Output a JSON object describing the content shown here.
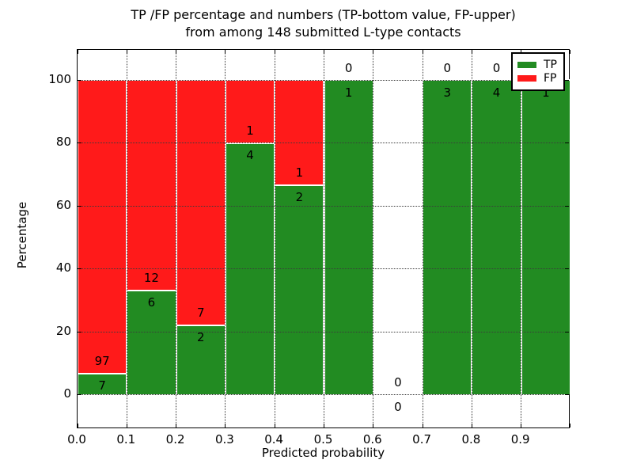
{
  "title": {
    "line1": "TP /FP percentage and numbers (TP-bottom value, FP-upper)",
    "line2": "from among 148 submitted L-type contacts"
  },
  "axes": {
    "xlabel": "Predicted probability",
    "ylabel": "Percentage",
    "xticks": [
      "0.0",
      "0.1",
      "0.2",
      "0.3",
      "0.4",
      "0.5",
      "0.6",
      "0.7",
      "0.8",
      "0.9"
    ],
    "yticks": [
      "0",
      "20",
      "40",
      "60",
      "80",
      "100"
    ]
  },
  "legend": {
    "items": [
      {
        "label": "TP",
        "color": "#228b22"
      },
      {
        "label": "FP",
        "color": "#ff1a1a"
      }
    ]
  },
  "chart_data": {
    "type": "bar",
    "stacked": true,
    "normalized_to_percent": true,
    "title": "TP /FP percentage and numbers (TP-bottom value, FP-upper) from among 148 submitted L-type contacts",
    "xlabel": "Predicted probability",
    "ylabel": "Percentage",
    "xlim": [
      0.0,
      1.0
    ],
    "ylim": [
      -11,
      110
    ],
    "bin_width": 0.1,
    "categories": [
      "0.0-0.1",
      "0.1-0.2",
      "0.2-0.3",
      "0.3-0.4",
      "0.4-0.5",
      "0.5-0.6",
      "0.6-0.7",
      "0.7-0.8",
      "0.8-0.9",
      "0.9-1.0"
    ],
    "series": [
      {
        "name": "TP",
        "color": "#228b22",
        "counts": [
          7,
          6,
          2,
          4,
          2,
          1,
          0,
          3,
          4,
          1
        ]
      },
      {
        "name": "FP",
        "color": "#ff1a1a",
        "counts": [
          97,
          12,
          7,
          1,
          1,
          0,
          0,
          0,
          0,
          0
        ]
      }
    ],
    "tp_percent_per_bin": [
      6.7,
      33.3,
      22.2,
      80.0,
      66.7,
      100.0,
      0.0,
      100.0,
      100.0,
      100.0
    ],
    "total_contacts": 148,
    "grid": "dotted, both axes, drawn over bars",
    "bar_edge_color": "#ffffff",
    "legend_position": "upper right"
  }
}
